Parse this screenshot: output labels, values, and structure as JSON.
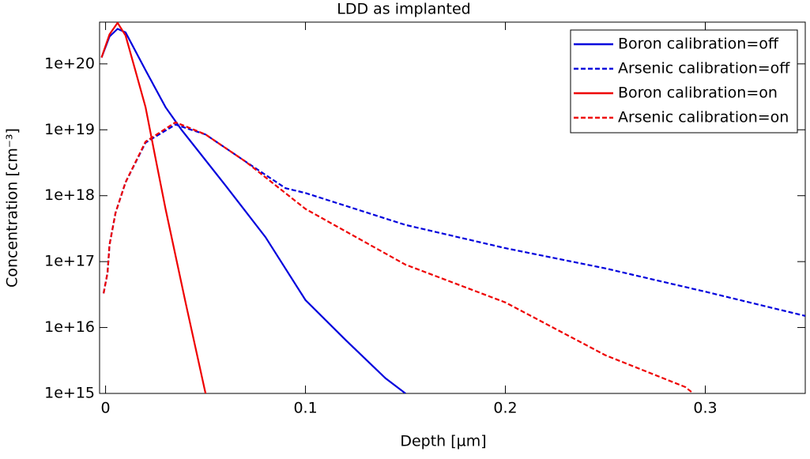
{
  "chart_data": {
    "type": "line",
    "title": "LDD as implanted",
    "x_label": "Depth [µm]",
    "y_label": "Concentration [cm⁻³]",
    "log_y": true,
    "legend": "upper right",
    "xlim": [
      -0.003,
      0.35
    ],
    "xticks": [
      0,
      0.1,
      0.2,
      0.3
    ],
    "ylim": [
      1000000000000000.0,
      4.3e+20
    ],
    "yticks": [
      {
        "value": 1000000000000000.0,
        "label": "1e+15"
      },
      {
        "value": 1e+16,
        "label": "1e+16"
      },
      {
        "value": 1e+17,
        "label": "1e+17"
      },
      {
        "value": 1e+18,
        "label": "1e+18"
      },
      {
        "value": 1e+19,
        "label": "1e+19"
      },
      {
        "value": 1e+20,
        "label": "1e+20"
      }
    ],
    "series": [
      {
        "name": "Boron calibration=off",
        "color": "#0000dd",
        "dash": false,
        "x": [
          -0.002,
          0.002,
          0.006,
          0.01,
          0.02,
          0.03,
          0.038,
          0.06,
          0.08,
          0.1,
          0.12,
          0.14,
          0.15
        ],
        "values": [
          1.25e+20,
          2.6e+20,
          3.4e+20,
          3e+20,
          8e+19,
          2.2e+19,
          1e+19,
          1.43e+18,
          2.35e+17,
          2.6e+16,
          6500000000000000.0,
          1700000000000000.0,
          1000000000000000.0
        ]
      },
      {
        "name": "Arsenic calibration=off",
        "color": "#0000dd",
        "dash": true,
        "x": [
          -0.001,
          0.001,
          0.002,
          0.005,
          0.01,
          0.02,
          0.035,
          0.05,
          0.07,
          0.09,
          0.1,
          0.15,
          0.2,
          0.25,
          0.3,
          0.35
        ],
        "values": [
          3.3e+16,
          6.8e+16,
          1.8e+17,
          5.5e+17,
          1.6e+18,
          6.4e+18,
          1.2e+19,
          8.5e+18,
          3.3e+18,
          1.3e+18,
          1.1e+18,
          3.6e+17,
          1.6e+17,
          7.9e+16,
          3.5e+16,
          1.5e+16
        ]
      },
      {
        "name": "Boron calibration=on",
        "color": "#ee0000",
        "dash": false,
        "x": [
          -0.002,
          0.002,
          0.006,
          0.01,
          0.015,
          0.02,
          0.025,
          0.03,
          0.04,
          0.05
        ],
        "values": [
          1.25e+20,
          2.8e+20,
          4.2e+20,
          2.7e+20,
          7.8e+19,
          2.2e+19,
          3.7e+18,
          6.3e+17,
          2.4e+16,
          1000000000000000.0
        ]
      },
      {
        "name": "Arsenic calibration=on",
        "color": "#ee0000",
        "dash": true,
        "x": [
          -0.001,
          0.001,
          0.002,
          0.005,
          0.01,
          0.02,
          0.035,
          0.05,
          0.07,
          0.1,
          0.15,
          0.2,
          0.25,
          0.29,
          0.294
        ],
        "values": [
          3.3e+16,
          6.8e+16,
          1.8e+17,
          5.5e+17,
          1.6e+18,
          6.6e+18,
          1.3e+19,
          8.5e+18,
          3.3e+18,
          6.3e+17,
          9e+16,
          2.4e+16,
          3800000000000000.0,
          1250000000000000.0,
          1000000000000000.0
        ]
      }
    ]
  }
}
